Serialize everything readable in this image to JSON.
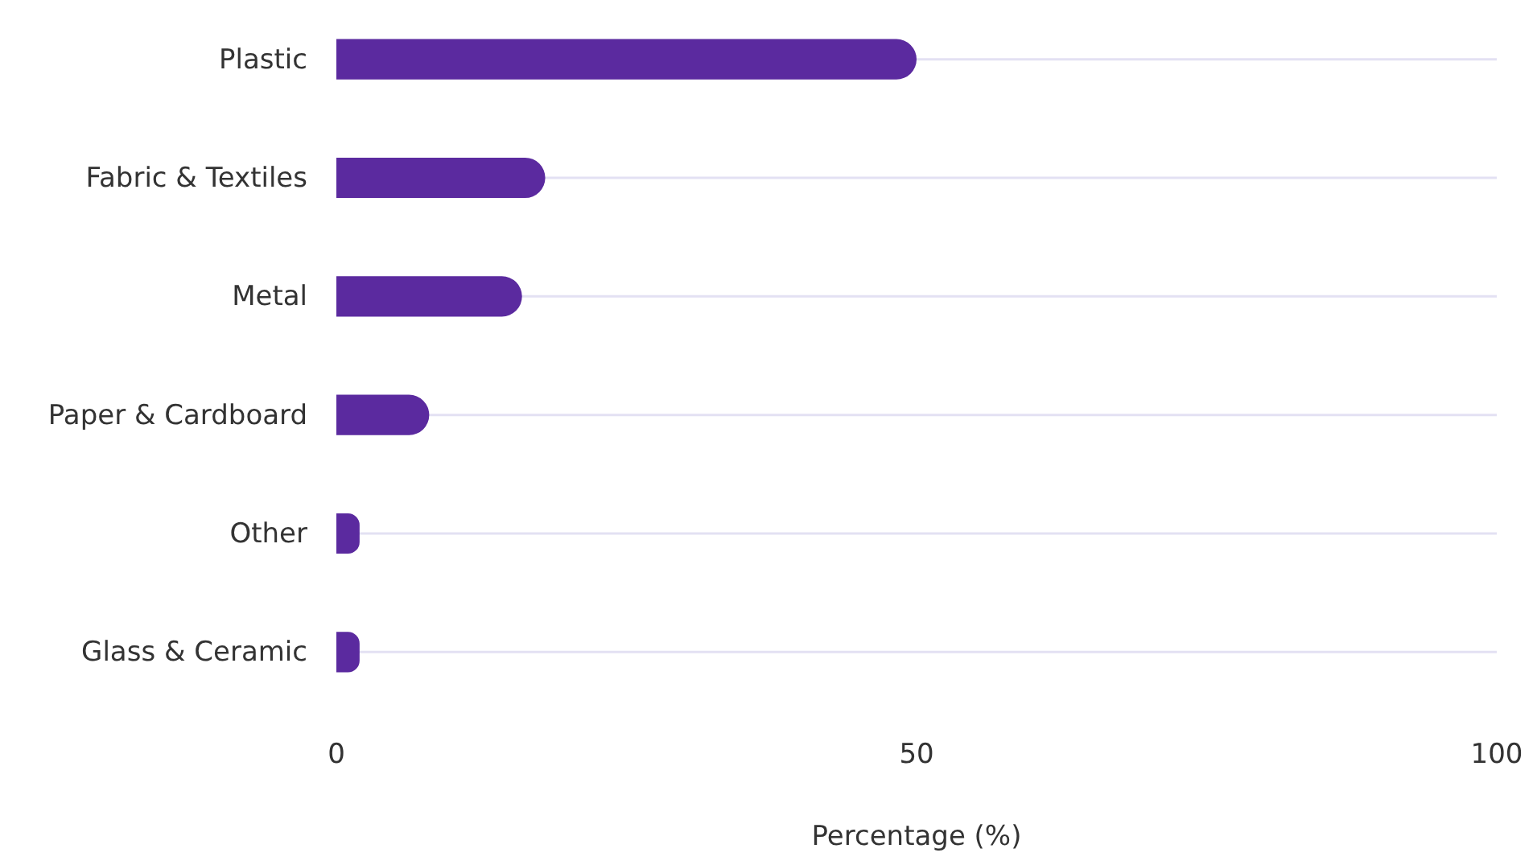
{
  "chart_data": {
    "type": "bar",
    "orientation": "horizontal",
    "xlabel": "Percentage (%)",
    "categories": [
      "Plastic",
      "Fabric & Textiles",
      "Metal",
      "Paper & Cardboard",
      "Other",
      "Glass & Ceramic"
    ],
    "values": [
      50,
      18,
      16,
      8,
      2,
      2
    ],
    "color": "#5b2a9f",
    "xlim": [
      0,
      100
    ],
    "xticks": [
      0,
      50,
      100
    ],
    "grid": "y"
  }
}
